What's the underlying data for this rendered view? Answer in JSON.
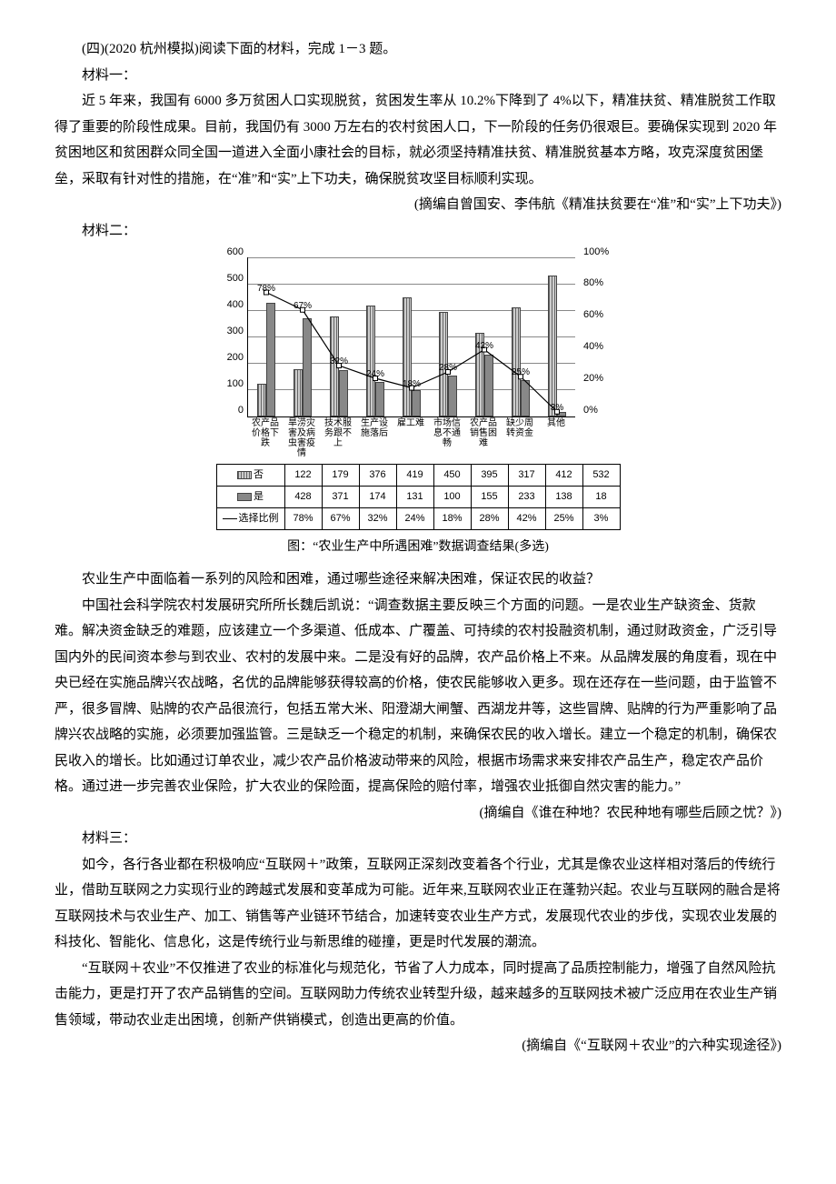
{
  "intro": {
    "lead": "(四)(2020 杭州模拟)阅读下面的材料，完成 1－3 题。",
    "m1_label": "材料一：",
    "m1_p1": "近 5 年来，我国有 6000 多万贫困人口实现脱贫，贫困发生率从 10.2%下降到了 4%以下，精准扶贫、精准脱贫工作取得了重要的阶段性成果。目前，我国仍有 3000 万左右的农村贫困人口，下一阶段的任务仍很艰巨。要确保实现到 2020 年贫困地区和贫困群众同全国一道进入全面小康社会的目标，就必须坚持精准扶贫、精准脱贫基本方略，攻克深度贫困堡垒，采取有针对性的措施，在“准”和“实”上下功夫，确保脱贫攻坚目标顺利实现。",
    "m1_source": "(摘编自曾国安、李伟航《精准扶贫要在“准”和“实”上下功夫》)",
    "m2_label": "材料二："
  },
  "chart": {
    "type": "bar+line",
    "categories": [
      "农产品价格下跌",
      "旱涝灾害及病虫害疫情",
      "技术服务跟不上",
      "生产设施落后",
      "雇工难",
      "市场信息不通畅",
      "农产品销售困难",
      "缺少周转资金",
      "其他"
    ],
    "row_no_label": "否",
    "row_yes_label": "是",
    "row_pct_label": "选择比例",
    "no_values": [
      122,
      179,
      376,
      419,
      450,
      395,
      317,
      412,
      532
    ],
    "yes_values": [
      428,
      371,
      174,
      131,
      100,
      155,
      233,
      138,
      18
    ],
    "pct_values": [
      "78%",
      "67%",
      "32%",
      "24%",
      "18%",
      "28%",
      "42%",
      "25%",
      "3%"
    ],
    "pct_nums": [
      78,
      67,
      32,
      24,
      18,
      28,
      42,
      25,
      3
    ],
    "y_left_ticks": [
      "0",
      "100",
      "200",
      "300",
      "400",
      "500",
      "600"
    ],
    "y_left_max": 600,
    "y_right_ticks": [
      "0%",
      "20%",
      "40%",
      "60%",
      "80%",
      "100%"
    ],
    "y_right_max": 100,
    "bar_no_pattern": "hatched",
    "bar_yes_color": "#888888",
    "line_color": "#000000",
    "grid_color": "#888888",
    "background_color": "#ffffff",
    "caption": "图：“农业生产中所遇困难”数据调查结果(多选)",
    "legend_no_swatch": "hatched",
    "legend_yes_swatch": "solid",
    "legend_line_swatch": "line"
  },
  "body": {
    "p_after_chart": "农业生产中面临着一系列的风险和困难，通过哪些途径来解决困难，保证农民的收益？",
    "m2_p1": "中国社会科学院农村发展研究所所长魏后凯说：“调查数据主要反映三个方面的问题。一是农业生产缺资金、货款难。解决资金缺乏的难题，应该建立一个多渠道、低成本、广覆盖、可持续的农村投融资机制，通过财政资金，广泛引导国内外的民间资本参与到农业、农村的发展中来。二是没有好的品牌，农产品价格上不来。从品牌发展的角度看，现在中央已经在实施品牌兴农战略，名优的品牌能够获得较高的价格，使农民能够收入更多。现在还存在一些问题，由于监管不严，很多冒牌、贴牌的农产品很流行，包括五常大米、阳澄湖大闸蟹、西湖龙井等，这些冒牌、贴牌的行为严重影响了品牌兴农战略的实施，必须要加强监管。三是缺乏一个稳定的机制，来确保农民的收入增长。建立一个稳定的机制，确保农民收入的增长。比如通过订单农业，减少农产品价格波动带来的风险，根据市场需求来安排农产品生产，稳定农产品价格。通过进一步完善农业保险，扩大农业的保险面，提高保险的赔付率，增强农业抵御自然灾害的能力。”",
    "m2_source": "(摘编自《谁在种地？农民种地有哪些后顾之忧？》)",
    "m3_label": "材料三：",
    "m3_p1": "如今，各行各业都在积极响应“互联网＋”政策，互联网正深刻改变着各个行业，尤其是像农业这样相对落后的传统行业，借助互联网之力实现行业的跨越式发展和变革成为可能。近年来,互联网农业正在蓬勃兴起。农业与互联网的融合是将互联网技术与农业生产、加工、销售等产业链环节结合，加速转变农业生产方式，发展现代农业的步伐，实现农业发展的科技化、智能化、信息化，这是传统行业与新思维的碰撞，更是时代发展的潮流。",
    "m3_p2": "“互联网＋农业”不仅推进了农业的标准化与规范化，节省了人力成本，同时提高了品质控制能力，增强了自然风险抗击能力，更是打开了农产品销售的空间。互联网助力传统农业转型升级，越来越多的互联网技术被广泛应用在农业生产销售领域，带动农业走出困境，创新产供销模式，创造出更高的价值。",
    "m3_source": "(摘编自《“互联网＋农业”的六种实现途径》)"
  }
}
